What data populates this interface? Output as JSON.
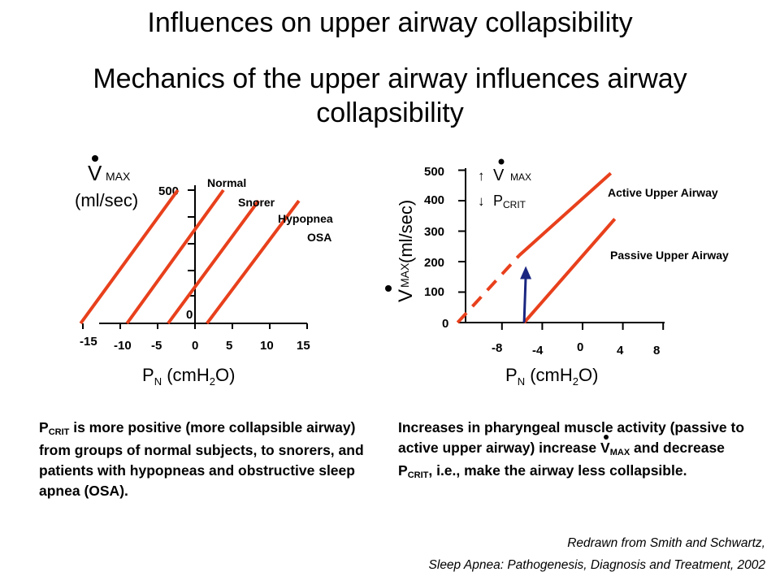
{
  "title": "Influences on upper airway collapsibility",
  "subtitle": "Mechanics of the upper airway influences airway collapsibility",
  "colors": {
    "line": "#e8401c",
    "arrow": "#1a2680",
    "axis": "#000000"
  },
  "left_chart": {
    "ylabel_main": "V",
    "ylabel_sub": "MAX",
    "ylabel_unit": "(ml/sec)",
    "y_tick_top": "500",
    "y_tick_zero": "0",
    "x_ticks": [
      "-15",
      "-10",
      "-5",
      "0",
      "5",
      "10",
      "15"
    ],
    "xlabel_p": "P",
    "xlabel_n": "N",
    "xlabel_unit_1": " (cmH",
    "xlabel_unit_2": "2",
    "xlabel_unit_3": "O)",
    "labels": [
      "Normal",
      "Snorer",
      "Hypopnea",
      "OSA"
    ]
  },
  "right_chart": {
    "ylabel_main": "V",
    "ylabel_sub": "MAX",
    "ylabel_unit": "(ml/sec)",
    "y_ticks": [
      "0",
      "100",
      "200",
      "300",
      "400",
      "500"
    ],
    "x_ticks": [
      "-8",
      "-4",
      "0",
      "4",
      "8"
    ],
    "xlabel_p": "P",
    "xlabel_n": "N",
    "xlabel_unit_1": " (cmH",
    "xlabel_unit_2": "2",
    "xlabel_unit_3": "O)",
    "legend_up_arrow": "↑",
    "legend_vmax": "V",
    "legend_vmax_sub": "MAX",
    "legend_down_arrow": "↓",
    "legend_pcrit": "P",
    "legend_pcrit_sub": "CRIT",
    "active_label": "Active Upper Airway",
    "passive_label": "Passive Upper Airway"
  },
  "chart_data": [
    {
      "type": "line",
      "title": "",
      "xlabel": "PN (cmH2O)",
      "ylabel": "V MAX (ml/sec)",
      "xlim": [
        -15,
        15
      ],
      "ylim": [
        0,
        500
      ],
      "grid": false,
      "series": [
        {
          "name": "Normal",
          "x": [
            -15.3,
            -2.3
          ],
          "y": [
            0,
            500
          ]
        },
        {
          "name": "Snorer",
          "x": [
            -9.1,
            3.8
          ],
          "y": [
            0,
            500
          ]
        },
        {
          "name": "Hypopnea",
          "x": [
            -3.6,
            8.5
          ],
          "y": [
            0,
            460
          ]
        },
        {
          "name": "OSA",
          "x": [
            1.6,
            13.9
          ],
          "y": [
            0,
            460
          ]
        }
      ]
    },
    {
      "type": "line",
      "title": "",
      "xlabel": "PN (cmH2O)",
      "ylabel": "V MAX (ml/sec)",
      "xlim": [
        -12,
        8
      ],
      "ylim": [
        0,
        500
      ],
      "grid": false,
      "series": [
        {
          "name": "Active Upper Airway",
          "x": [
            -6.3,
            2.8
          ],
          "y": [
            220,
            490
          ],
          "extrapolated_x": [
            -12.4,
            -6.3
          ],
          "extrapolated_y": [
            0,
            220
          ]
        },
        {
          "name": "Passive Upper Airway",
          "x": [
            -5.8,
            3.2
          ],
          "y": [
            0,
            340
          ]
        }
      ],
      "arrow": {
        "x": -5.8,
        "y_from": 0,
        "y_to": 180
      }
    }
  ],
  "caption_left": {
    "p": "P",
    "p_sub": "CRIT",
    "text": " is more positive (more collapsible airway) from groups of normal subjects, to snorers, and patients with hypopneas and obstructive sleep apnea (OSA)."
  },
  "caption_right": {
    "text1": "Increases in pharyngeal muscle activity (passive to active upper airway) increase ",
    "v": "V",
    "v_sub": "MAX",
    "text2": " and decrease P",
    "p_sub": "CRIT",
    "text3": ", i.e., make the airway less collapsible."
  },
  "credit_line1": "Redrawn from Smith and Schwartz,",
  "credit_line2": "Sleep Apnea: Pathogenesis, Diagnosis and Treatment, 2002"
}
